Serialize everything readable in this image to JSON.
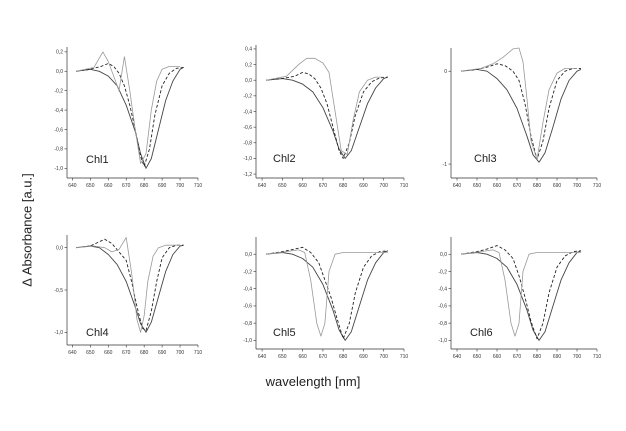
{
  "figure": {
    "ylabel": "Δ Absorbance [a.u.]",
    "xlabel": "wavelength [nm]"
  },
  "chart_data": [
    {
      "type": "line",
      "panel_label": "Chl1",
      "xlim": [
        637,
        710
      ],
      "ylim": [
        -1.1,
        0.25
      ],
      "xticks": [
        640,
        650,
        660,
        670,
        680,
        690,
        700,
        710
      ],
      "yticks": [
        0.2,
        0.0,
        -0.2,
        -0.4,
        -0.6,
        -0.8,
        -1.0
      ],
      "ytick_labels": [
        "0,2",
        "0,0",
        "-0,2",
        "-0,4",
        "-0,6",
        "-0,8",
        "-1,0"
      ],
      "series": [
        {
          "style": "solid",
          "x": [
            642,
            650,
            655,
            660,
            665,
            670,
            675,
            678,
            681,
            684,
            688,
            692,
            696,
            700,
            702
          ],
          "y": [
            0.0,
            0.02,
            0.0,
            -0.05,
            -0.15,
            -0.35,
            -0.62,
            -0.85,
            -1.0,
            -0.9,
            -0.6,
            -0.3,
            -0.1,
            0.02,
            0.04
          ]
        },
        {
          "style": "dashed",
          "x": [
            642,
            650,
            656,
            660,
            663,
            666,
            669,
            672,
            675,
            678,
            680,
            683,
            686,
            690,
            694,
            698,
            702
          ],
          "y": [
            0.0,
            0.02,
            0.05,
            0.08,
            0.05,
            -0.02,
            -0.15,
            -0.35,
            -0.6,
            -0.88,
            -0.98,
            -0.8,
            -0.45,
            -0.15,
            -0.02,
            0.03,
            0.04
          ]
        },
        {
          "style": "dotted",
          "x": [
            642,
            652,
            657,
            660,
            663,
            666,
            669,
            672,
            675,
            678,
            681,
            684,
            687,
            690,
            694,
            700
          ],
          "y": [
            0.0,
            0.04,
            0.2,
            0.1,
            -0.05,
            -0.2,
            0.15,
            -0.2,
            -0.6,
            -0.95,
            -0.85,
            -0.4,
            -0.1,
            0.02,
            0.05,
            0.05
          ]
        }
      ]
    },
    {
      "type": "line",
      "panel_label": "Chl2",
      "xlim": [
        637,
        710
      ],
      "ylim": [
        -1.25,
        0.45
      ],
      "xticks": [
        640,
        650,
        660,
        670,
        680,
        690,
        700,
        710
      ],
      "yticks": [
        0.4,
        0.2,
        0.0,
        -0.2,
        -0.4,
        -0.6,
        -0.8,
        -1.0,
        -1.2
      ],
      "ytick_labels": [
        "0,4",
        "0,2",
        "0,0",
        "-0,2",
        "-0,4",
        "-0,6",
        "-0,8",
        "-1,0",
        "-1,2"
      ],
      "series": [
        {
          "style": "solid",
          "x": [
            642,
            650,
            655,
            660,
            665,
            670,
            675,
            678,
            681,
            684,
            688,
            692,
            696,
            700,
            702
          ],
          "y": [
            0.0,
            0.02,
            0.0,
            -0.05,
            -0.15,
            -0.35,
            -0.65,
            -0.88,
            -1.0,
            -0.9,
            -0.6,
            -0.3,
            -0.1,
            0.02,
            0.04
          ]
        },
        {
          "style": "dashed",
          "x": [
            642,
            650,
            656,
            660,
            663,
            666,
            669,
            672,
            675,
            678,
            680,
            683,
            686,
            690,
            694,
            698,
            702
          ],
          "y": [
            0.0,
            0.02,
            0.05,
            0.1,
            0.08,
            0.02,
            -0.1,
            -0.3,
            -0.6,
            -0.9,
            -1.0,
            -0.8,
            -0.45,
            -0.15,
            -0.02,
            0.03,
            0.04
          ]
        },
        {
          "style": "dotted",
          "x": [
            642,
            652,
            658,
            662,
            666,
            670,
            673,
            676,
            679,
            682,
            685,
            688,
            692,
            696,
            700
          ],
          "y": [
            0.0,
            0.05,
            0.2,
            0.28,
            0.28,
            0.22,
            0.1,
            -0.4,
            -0.9,
            -0.95,
            -0.5,
            -0.15,
            0.0,
            0.04,
            0.04
          ]
        }
      ]
    },
    {
      "type": "line",
      "panel_label": "Chl3",
      "xlim": [
        637,
        710
      ],
      "ylim": [
        -1.15,
        0.25
      ],
      "xticks": [
        640,
        650,
        660,
        670,
        680,
        690,
        700,
        710
      ],
      "yticks": [
        0,
        -1
      ],
      "ytick_labels": [
        "0",
        "-1"
      ],
      "series": [
        {
          "style": "solid",
          "x": [
            642,
            650,
            655,
            660,
            665,
            670,
            675,
            678,
            681,
            684,
            688,
            692,
            696,
            700,
            702
          ],
          "y": [
            0.0,
            0.02,
            0.0,
            -0.08,
            -0.2,
            -0.4,
            -0.7,
            -0.9,
            -0.98,
            -0.88,
            -0.6,
            -0.3,
            -0.1,
            0.0,
            0.02
          ]
        },
        {
          "style": "dashed",
          "x": [
            642,
            650,
            656,
            660,
            664,
            668,
            671,
            674,
            677,
            680,
            683,
            686,
            690,
            694,
            698,
            702
          ],
          "y": [
            0.0,
            0.02,
            0.05,
            0.08,
            0.06,
            0.0,
            -0.1,
            -0.35,
            -0.7,
            -0.95,
            -0.75,
            -0.4,
            -0.1,
            0.0,
            0.03,
            0.03
          ]
        },
        {
          "style": "dotted",
          "x": [
            642,
            652,
            658,
            663,
            668,
            671,
            673,
            675,
            677,
            680,
            683,
            686,
            690,
            694,
            700
          ],
          "y": [
            0.0,
            0.03,
            0.08,
            0.15,
            0.24,
            0.25,
            0.1,
            -0.3,
            -0.75,
            -0.95,
            -0.55,
            -0.2,
            -0.02,
            0.03,
            0.03
          ]
        }
      ]
    },
    {
      "type": "line",
      "panel_label": "Chl4",
      "xlim": [
        637,
        710
      ],
      "ylim": [
        -1.15,
        0.15
      ],
      "xticks": [
        640,
        650,
        660,
        670,
        680,
        690,
        700,
        710
      ],
      "yticks": [
        0.0,
        -0.5,
        -1.0
      ],
      "ytick_labels": [
        "0,0",
        "-0,5",
        "-1,0"
      ],
      "series": [
        {
          "style": "solid",
          "x": [
            642,
            650,
            655,
            660,
            665,
            670,
            675,
            678,
            681,
            684,
            688,
            692,
            696,
            700,
            702
          ],
          "y": [
            0.0,
            0.02,
            0.0,
            -0.08,
            -0.2,
            -0.4,
            -0.7,
            -0.9,
            -1.0,
            -0.88,
            -0.58,
            -0.28,
            -0.08,
            0.02,
            0.03
          ]
        },
        {
          "style": "dashed",
          "x": [
            642,
            650,
            654,
            658,
            662,
            666,
            670,
            673,
            676,
            679,
            681,
            684,
            687,
            690,
            694,
            698,
            702
          ],
          "y": [
            0.0,
            0.02,
            0.06,
            0.1,
            0.05,
            -0.05,
            -0.15,
            -0.4,
            -0.7,
            -0.95,
            -0.98,
            -0.75,
            -0.4,
            -0.12,
            0.0,
            0.03,
            0.03
          ]
        },
        {
          "style": "dotted",
          "x": [
            642,
            652,
            658,
            662,
            666,
            670,
            673,
            676,
            678,
            680,
            682,
            685,
            688,
            692,
            696,
            700
          ],
          "y": [
            0.0,
            0.02,
            0.0,
            -0.05,
            -0.02,
            0.12,
            -0.3,
            -0.85,
            -1.0,
            -0.8,
            -0.4,
            -0.1,
            0.0,
            0.03,
            0.03,
            0.03
          ]
        }
      ]
    },
    {
      "type": "line",
      "panel_label": "Chl5",
      "xlim": [
        637,
        710
      ],
      "ylim": [
        -1.1,
        0.2
      ],
      "xticks": [
        640,
        650,
        660,
        670,
        680,
        690,
        700,
        710
      ],
      "yticks": [
        0.0,
        -0.2,
        -0.4,
        -0.6,
        -0.8,
        -1.0
      ],
      "ytick_labels": [
        "0,0",
        "-0,2",
        "-0,4",
        "-0,6",
        "-0,8",
        "-1,0"
      ],
      "series": [
        {
          "style": "solid",
          "x": [
            642,
            650,
            655,
            660,
            665,
            670,
            675,
            678,
            681,
            684,
            688,
            692,
            696,
            700,
            702
          ],
          "y": [
            0.0,
            0.02,
            0.0,
            -0.05,
            -0.15,
            -0.35,
            -0.65,
            -0.88,
            -1.0,
            -0.9,
            -0.6,
            -0.3,
            -0.1,
            0.02,
            0.04
          ]
        },
        {
          "style": "dashed",
          "x": [
            642,
            650,
            656,
            660,
            664,
            668,
            671,
            674,
            677,
            680,
            683,
            686,
            690,
            694,
            698,
            702
          ],
          "y": [
            0.0,
            0.03,
            0.06,
            0.08,
            0.02,
            -0.1,
            -0.3,
            -0.5,
            -0.75,
            -0.98,
            -0.8,
            -0.45,
            -0.15,
            -0.02,
            0.03,
            0.04
          ]
        },
        {
          "style": "dotted",
          "x": [
            642,
            652,
            658,
            661,
            664,
            667,
            669,
            671,
            673,
            676,
            680,
            686,
            694,
            702
          ],
          "y": [
            0.0,
            0.03,
            0.05,
            0.02,
            -0.3,
            -0.8,
            -0.95,
            -0.8,
            -0.2,
            0.0,
            0.02,
            0.02,
            0.02,
            0.02
          ]
        }
      ]
    },
    {
      "type": "line",
      "panel_label": "Chl6",
      "xlim": [
        637,
        710
      ],
      "ylim": [
        -1.1,
        0.2
      ],
      "xticks": [
        640,
        650,
        660,
        670,
        680,
        690,
        700,
        710
      ],
      "yticks": [
        0.0,
        -0.2,
        -0.4,
        -0.6,
        -0.8,
        -1.0
      ],
      "ytick_labels": [
        "0,0",
        "-0,2",
        "-0,4",
        "-0,6",
        "-0,8",
        "-1,0"
      ],
      "series": [
        {
          "style": "solid",
          "x": [
            642,
            650,
            655,
            660,
            665,
            670,
            675,
            678,
            681,
            684,
            688,
            692,
            696,
            700,
            702
          ],
          "y": [
            0.0,
            0.02,
            0.0,
            -0.05,
            -0.15,
            -0.35,
            -0.65,
            -0.88,
            -1.0,
            -0.9,
            -0.6,
            -0.3,
            -0.1,
            0.02,
            0.04
          ]
        },
        {
          "style": "dashed",
          "x": [
            642,
            650,
            655,
            660,
            664,
            668,
            671,
            674,
            677,
            680,
            683,
            686,
            690,
            694,
            698,
            702
          ],
          "y": [
            0.0,
            0.03,
            0.06,
            0.1,
            0.05,
            -0.05,
            -0.25,
            -0.5,
            -0.78,
            -0.98,
            -0.8,
            -0.45,
            -0.15,
            -0.02,
            0.03,
            0.04
          ]
        },
        {
          "style": "dotted",
          "x": [
            642,
            652,
            658,
            661,
            664,
            667,
            669,
            671,
            673,
            676,
            680,
            686,
            694,
            702
          ],
          "y": [
            0.0,
            0.03,
            0.05,
            0.02,
            -0.3,
            -0.8,
            -0.95,
            -0.8,
            -0.2,
            0.0,
            0.02,
            0.02,
            0.02,
            0.02
          ]
        }
      ]
    }
  ]
}
